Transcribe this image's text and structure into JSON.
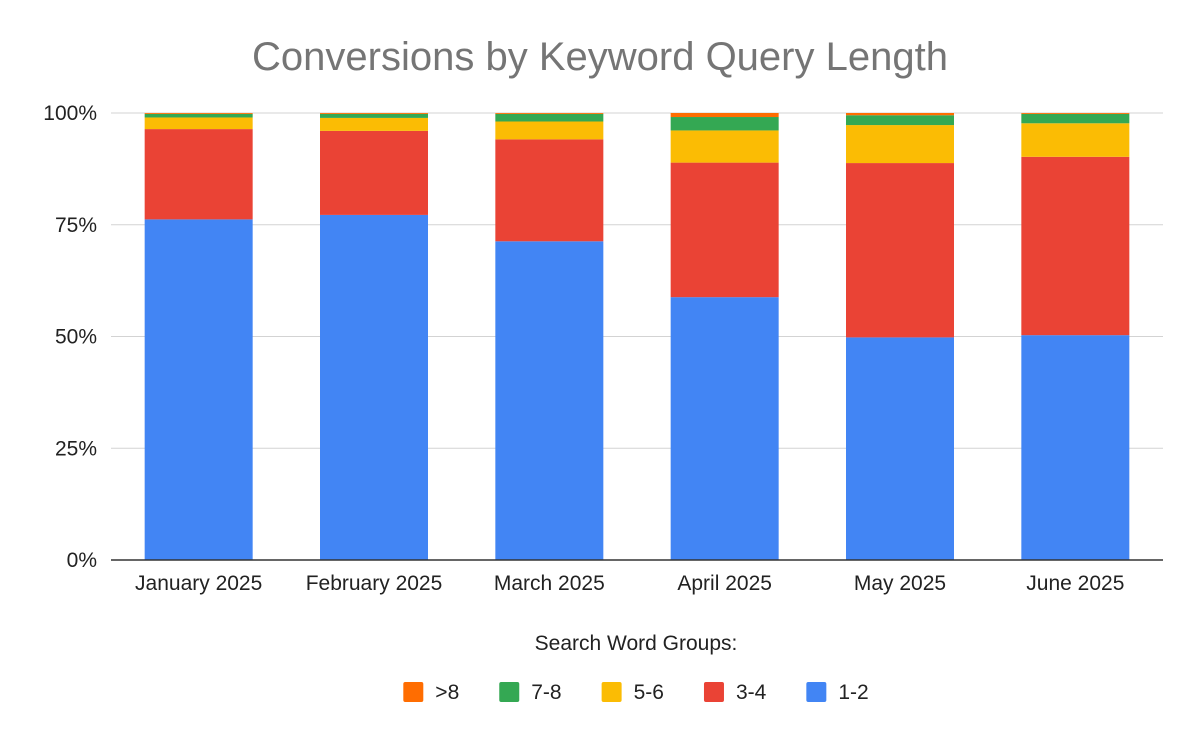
{
  "chart_data": {
    "type": "bar",
    "stacked": true,
    "normalized": true,
    "title": "Conversions by Keyword Query Length",
    "xlabel": "",
    "ylabel": "",
    "ylim": [
      0,
      100
    ],
    "y_ticks": [
      0,
      25,
      50,
      75,
      100
    ],
    "y_tick_labels": [
      "0%",
      "25%",
      "50%",
      "75%",
      "100%"
    ],
    "grid": true,
    "categories": [
      "January 2025",
      "February 2025",
      "March 2025",
      "April 2025",
      "May 2025",
      "June 2025"
    ],
    "series": [
      {
        "name": "1-2",
        "color": "#4285F4",
        "values": [
          76.2,
          77.2,
          71.3,
          58.8,
          49.8,
          50.3
        ]
      },
      {
        "name": "3-4",
        "color": "#EA4335",
        "values": [
          20.2,
          18.8,
          22.8,
          30.1,
          39.0,
          39.9
        ]
      },
      {
        "name": "5-6",
        "color": "#FBBC04",
        "values": [
          2.6,
          2.9,
          4.0,
          7.2,
          8.5,
          7.5
        ]
      },
      {
        "name": "7-8",
        "color": "#34A853",
        "values": [
          0.8,
          0.9,
          1.7,
          3.0,
          2.2,
          2.1
        ]
      },
      {
        "name": ">8",
        "color": "#FF6D01",
        "values": [
          0.2,
          0.2,
          0.2,
          0.9,
          0.5,
          0.2
        ]
      }
    ],
    "legend": {
      "title": "Search Word Groups:",
      "position": "bottom",
      "order": [
        ">8",
        "7-8",
        "5-6",
        "3-4",
        "1-2"
      ]
    }
  }
}
